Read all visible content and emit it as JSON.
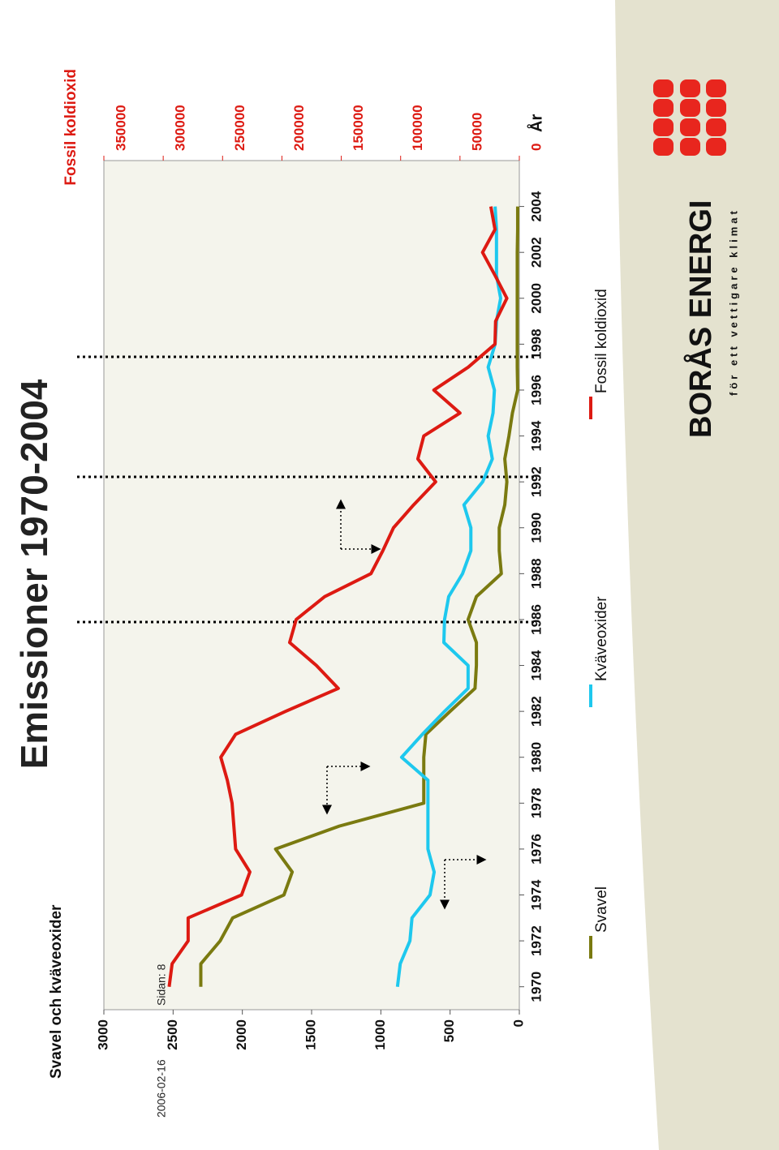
{
  "chart_data": {
    "type": "line",
    "title": "Emissioner 1970-2004",
    "y_label": "Svavel och kväveoxider",
    "y2_label": "Fossil koldioxid",
    "x_label": "År",
    "x": [
      1970,
      1971,
      1972,
      1973,
      1974,
      1975,
      1976,
      1977,
      1978,
      1979,
      1980,
      1981,
      1982,
      1983,
      1984,
      1985,
      1986,
      1987,
      1988,
      1989,
      1990,
      1991,
      1992,
      1993,
      1994,
      1995,
      1996,
      1997,
      1998,
      1999,
      2000,
      2001,
      2002,
      2003,
      2004
    ],
    "xlim": [
      1969,
      2006
    ],
    "xticks": [
      1970,
      1972,
      1974,
      1976,
      1978,
      1980,
      1982,
      1984,
      1986,
      1988,
      1990,
      1992,
      1994,
      1996,
      1998,
      2000,
      2002,
      2004
    ],
    "ylim": [
      0,
      3000
    ],
    "yticks": [
      0,
      500,
      1000,
      1500,
      2000,
      2500,
      3000
    ],
    "y2lim": [
      0,
      350000
    ],
    "y2ticks": [
      0,
      50000,
      100000,
      150000,
      200000,
      250000,
      300000,
      350000
    ],
    "series": [
      {
        "name": "Svavel",
        "color": "#7a7a10",
        "values": [
          2300,
          2300,
          2160,
          2070,
          1700,
          1640,
          1760,
          1300,
          690,
          690,
          690,
          675,
          500,
          320,
          310,
          310,
          370,
          310,
          130,
          145,
          145,
          105,
          90,
          105,
          75,
          50,
          12,
          15,
          15,
          15,
          15,
          15,
          15,
          12,
          12
        ]
      },
      {
        "name": "Kväveoxider",
        "color": "#1ec8ee",
        "values": [
          880,
          860,
          790,
          775,
          645,
          615,
          660,
          660,
          660,
          660,
          850,
          700,
          540,
          370,
          370,
          545,
          540,
          510,
          410,
          350,
          350,
          400,
          265,
          195,
          225,
          190,
          180,
          225,
          175,
          165,
          135,
          165,
          165,
          165,
          175
        ]
      },
      {
        "name": "Fossil koldioxid",
        "color": "#dd1a12",
        "axis": "y2",
        "values": [
          295000,
          292500,
          279000,
          279000,
          234000,
          227000,
          239000,
          240500,
          242000,
          246000,
          251500,
          239000,
          197000,
          152500,
          171000,
          193500,
          188000,
          164000,
          125000,
          115000,
          106000,
          89000,
          70500,
          85500,
          80500,
          50000,
          72000,
          43000,
          20500,
          20000,
          10500,
          20500,
          31000,
          20500,
          24000
        ]
      }
    ]
  },
  "footer": {
    "date": "2006-02-16",
    "page": "Sidan: 8"
  },
  "logo": {
    "name": "BORÅS ENERGI",
    "tagline": "för ett vettigare klimat"
  }
}
